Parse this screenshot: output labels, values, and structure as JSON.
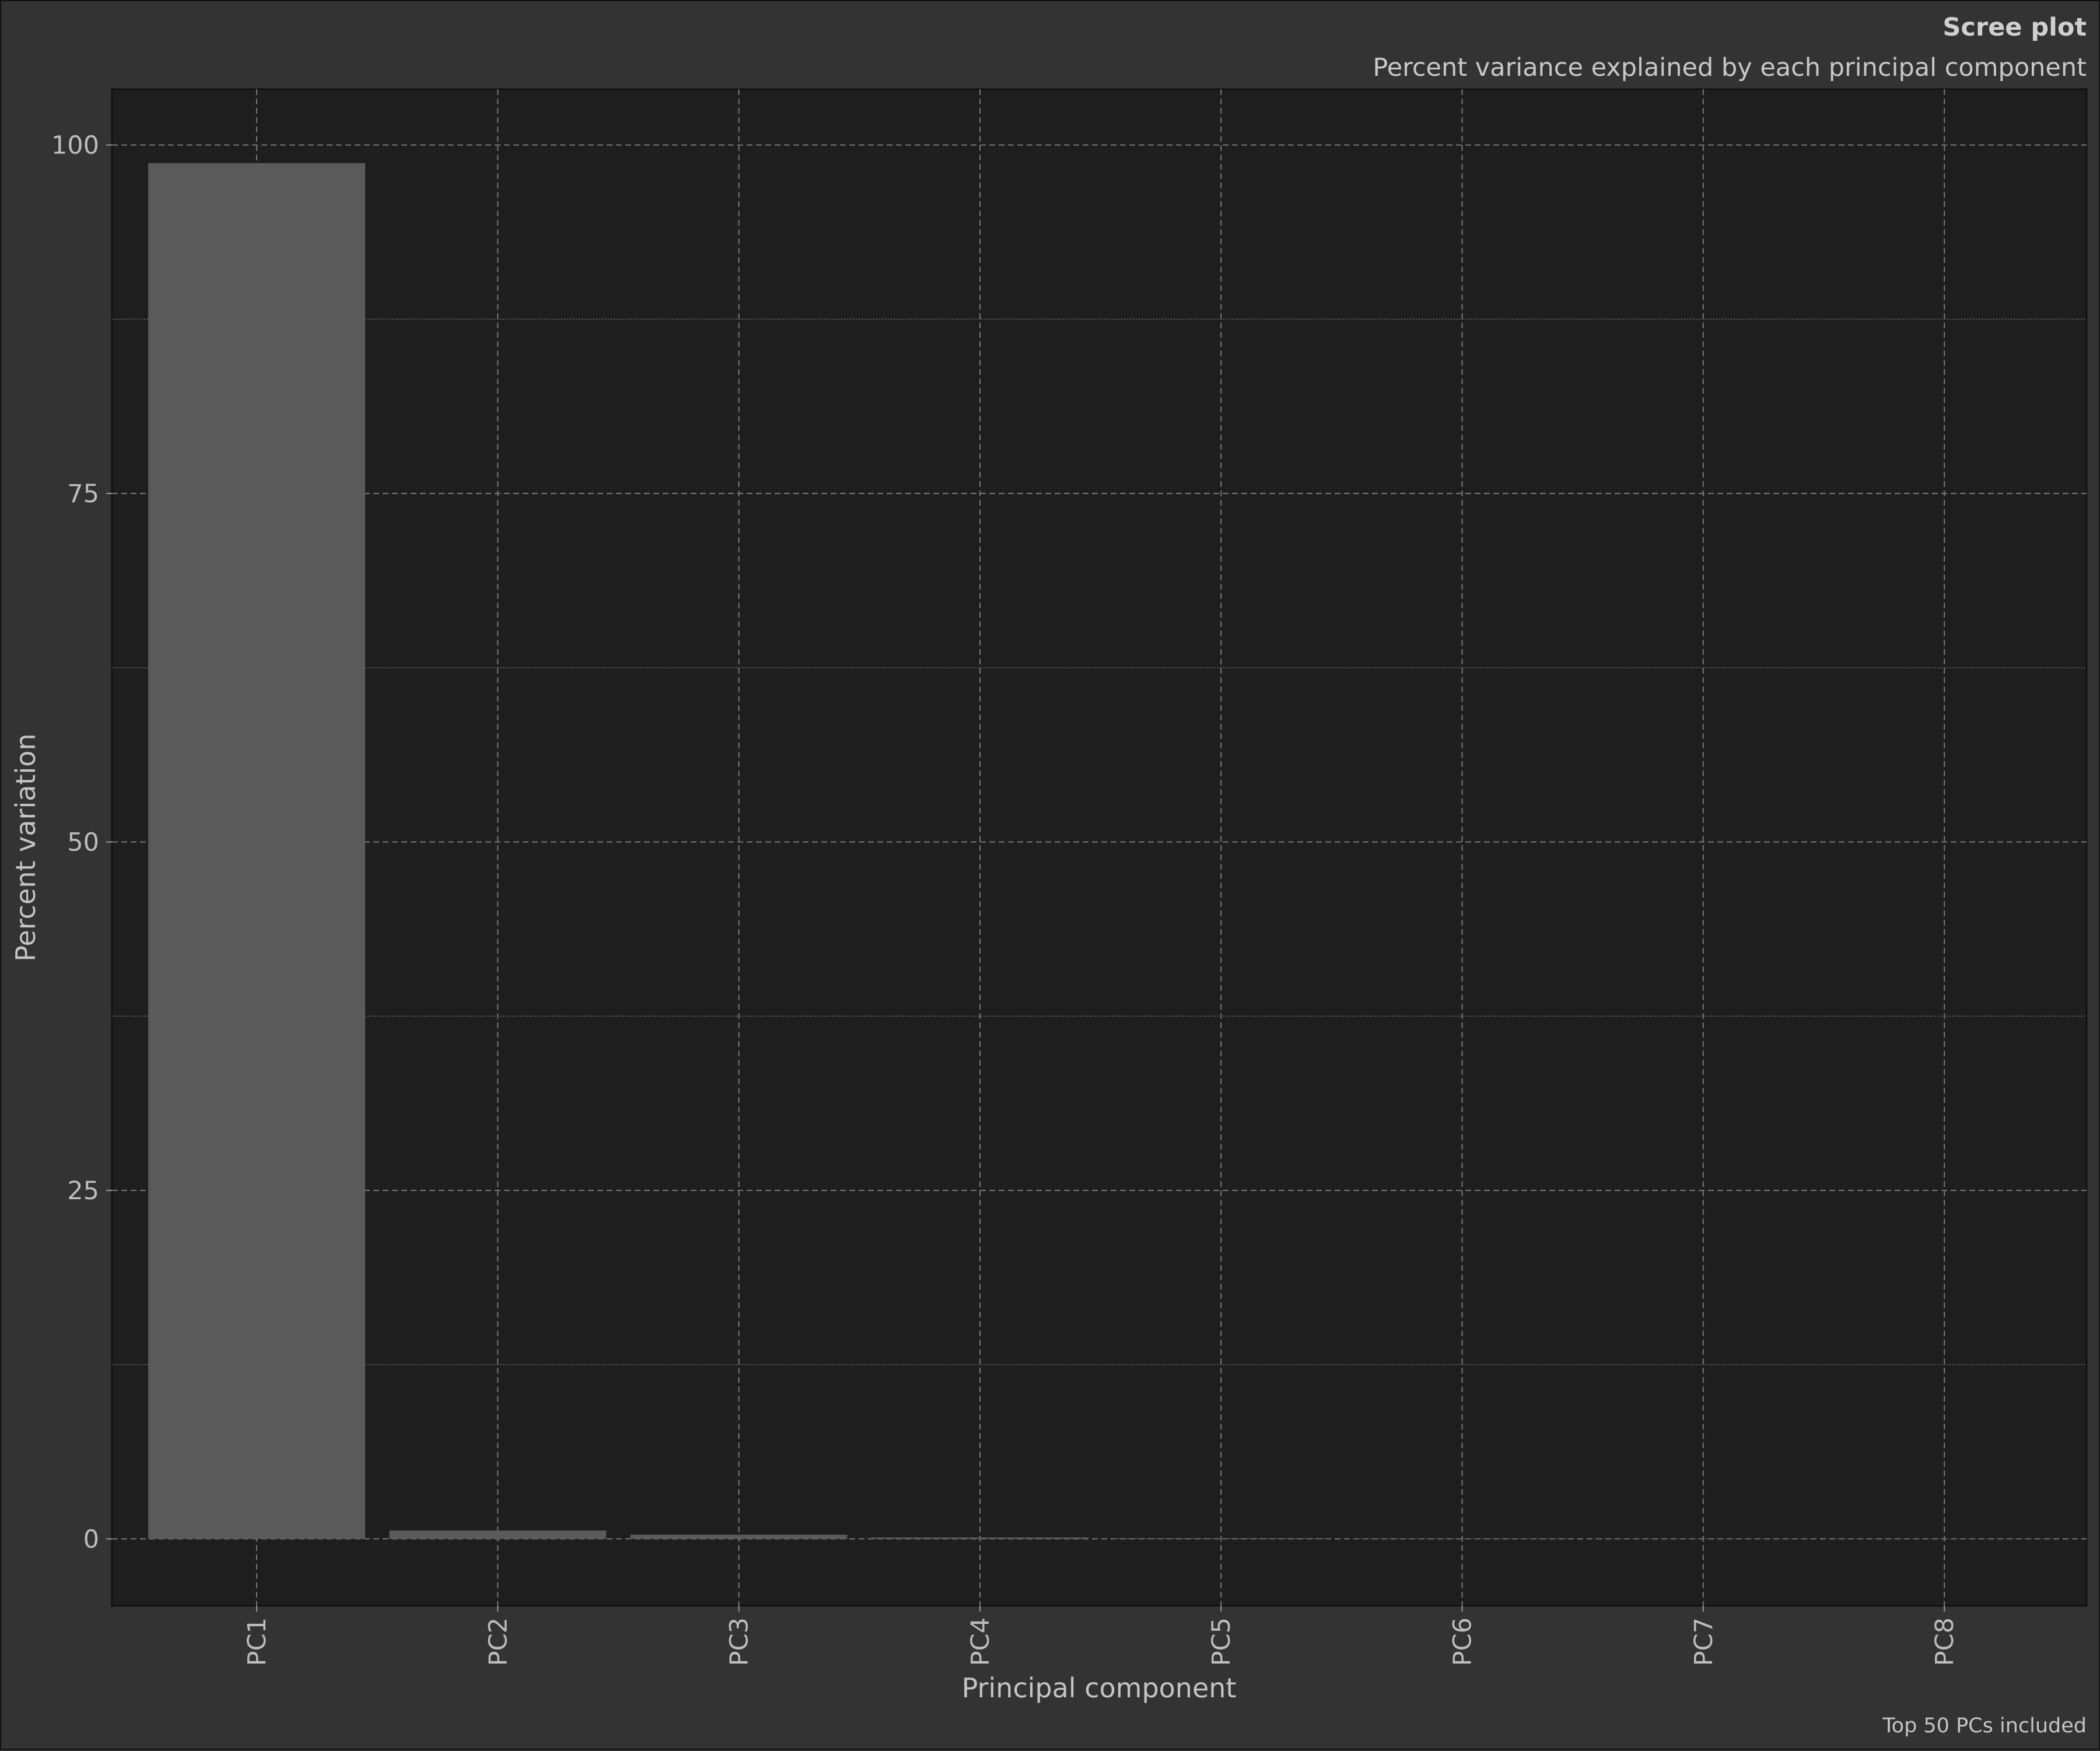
{
  "chart_data": {
    "type": "bar",
    "title": "Scree plot",
    "subtitle": "Percent variance explained by each principal component",
    "caption": "Top 50 PCs included",
    "xlabel": "Principal component",
    "ylabel": "Percent variation",
    "categories": [
      "PC1",
      "PC2",
      "PC3",
      "PC4",
      "PC5",
      "PC6",
      "PC7",
      "PC8"
    ],
    "values": [
      98.7,
      0.6,
      0.3,
      0.1,
      0.05,
      0.03,
      0.02,
      0.01
    ],
    "ylim": [
      -4.8,
      104
    ],
    "yticks": [
      0,
      25,
      50,
      75,
      100
    ],
    "grid": true,
    "colors": {
      "background": "#333333",
      "panel": "#1e1e1e",
      "bar": "#5a5a5a",
      "grid": "#777777",
      "text": "#c8c8c8"
    }
  }
}
